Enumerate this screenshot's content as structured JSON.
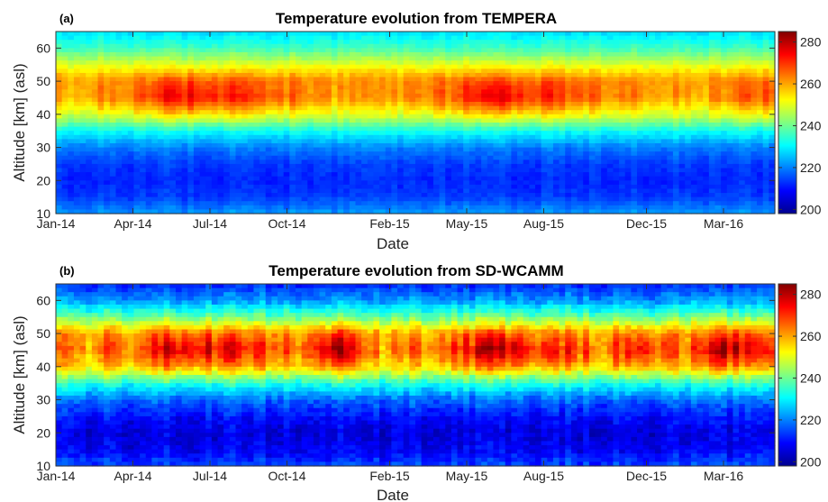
{
  "chart_data": [
    {
      "type": "heatmap",
      "panel_label": "(a)",
      "title": "Temperature evolution from TEMPERA",
      "xlabel": "Date",
      "ylabel": "Altitude [km] (asl)",
      "x_ticks": [
        "Jan-14",
        "Apr-14",
        "Jul-14",
        "Oct-14",
        "Feb-15",
        "May-15",
        "Aug-15",
        "Dec-15",
        "Mar-16"
      ],
      "x_range": [
        "Jan-14",
        "May-16"
      ],
      "y_ticks": [
        10,
        20,
        30,
        40,
        50,
        60
      ],
      "y_range": [
        10,
        65
      ],
      "colorbar": {
        "ticks": [
          200,
          220,
          240,
          260,
          280
        ],
        "range": [
          198,
          285
        ],
        "colormap": "jet"
      },
      "profile": {
        "altitudes": [
          10,
          15,
          20,
          25,
          30,
          35,
          40,
          45,
          50,
          55,
          60,
          65
        ],
        "temperatures": [
          222,
          214,
          212,
          214,
          220,
          232,
          252,
          266,
          264,
          250,
          236,
          228
        ]
      },
      "features": [
        {
          "date": "2014-06",
          "stratopause_max": 266
        },
        {
          "date": "2015-01",
          "stratopause_max": 258
        },
        {
          "date": "2015-06",
          "stratopause_max": 266
        },
        {
          "date": "2015-12",
          "stratopause_max": 264
        }
      ]
    },
    {
      "type": "heatmap",
      "panel_label": "(b)",
      "title": "Temperature evolution from SD-WCAMM",
      "xlabel": "Date",
      "ylabel": "Altitude [km] (asl)",
      "x_ticks": [
        "Jan-14",
        "Apr-14",
        "Jul-14",
        "Oct-14",
        "Feb-15",
        "May-15",
        "Aug-15",
        "Dec-15",
        "Mar-16"
      ],
      "x_range": [
        "Jan-14",
        "May-16"
      ],
      "y_ticks": [
        10,
        20,
        30,
        40,
        50,
        60
      ],
      "y_range": [
        10,
        65
      ],
      "colorbar": {
        "ticks": [
          200,
          220,
          240,
          260,
          280
        ],
        "range": [
          198,
          285
        ],
        "colormap": "jet"
      },
      "profile": {
        "altitudes": [
          10,
          15,
          20,
          25,
          30,
          35,
          40,
          45,
          50,
          55,
          60,
          65
        ],
        "temperatures": [
          215,
          208,
          206,
          210,
          218,
          234,
          258,
          268,
          262,
          240,
          222,
          212
        ]
      },
      "features": [
        {
          "date": "2014-06",
          "stratopause_max": 268
        },
        {
          "date": "2014-12",
          "stratopause_max": 282
        },
        {
          "date": "2015-06",
          "stratopause_max": 268
        },
        {
          "date": "2015-12",
          "stratopause_max": 276
        },
        {
          "date": "2016-03",
          "stratopause_max": 276
        }
      ]
    }
  ]
}
